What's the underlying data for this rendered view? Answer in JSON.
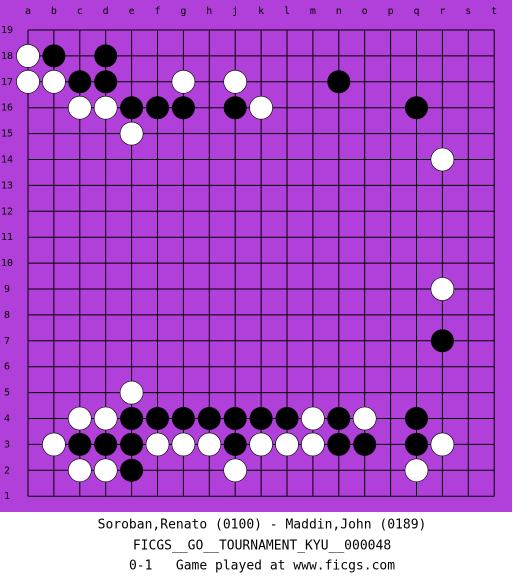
{
  "board": {
    "columns": [
      "a",
      "b",
      "c",
      "d",
      "e",
      "f",
      "g",
      "h",
      "j",
      "k",
      "l",
      "m",
      "n",
      "o",
      "p",
      "q",
      "r",
      "s",
      "t"
    ],
    "rows": [
      19,
      18,
      17,
      16,
      15,
      14,
      13,
      12,
      11,
      10,
      9,
      8,
      7,
      6,
      5,
      4,
      3,
      2,
      1
    ],
    "stones": [
      {
        "color": "white",
        "col": "a",
        "row": 18
      },
      {
        "color": "black",
        "col": "b",
        "row": 18
      },
      {
        "color": "black",
        "col": "d",
        "row": 18
      },
      {
        "color": "white",
        "col": "a",
        "row": 17
      },
      {
        "color": "white",
        "col": "b",
        "row": 17
      },
      {
        "color": "black",
        "col": "c",
        "row": 17
      },
      {
        "color": "black",
        "col": "d",
        "row": 17
      },
      {
        "color": "white",
        "col": "g",
        "row": 17
      },
      {
        "color": "white",
        "col": "j",
        "row": 17
      },
      {
        "color": "black",
        "col": "n",
        "row": 17
      },
      {
        "color": "white",
        "col": "c",
        "row": 16
      },
      {
        "color": "white",
        "col": "d",
        "row": 16
      },
      {
        "color": "black",
        "col": "e",
        "row": 16
      },
      {
        "color": "black",
        "col": "f",
        "row": 16
      },
      {
        "color": "black",
        "col": "g",
        "row": 16
      },
      {
        "color": "black",
        "col": "j",
        "row": 16
      },
      {
        "color": "white",
        "col": "k",
        "row": 16
      },
      {
        "color": "black",
        "col": "q",
        "row": 16
      },
      {
        "color": "white",
        "col": "e",
        "row": 15
      },
      {
        "color": "white",
        "col": "r",
        "row": 14
      },
      {
        "color": "white",
        "col": "r",
        "row": 9
      },
      {
        "color": "black",
        "col": "r",
        "row": 7
      },
      {
        "color": "white",
        "col": "e",
        "row": 5
      },
      {
        "color": "white",
        "col": "c",
        "row": 4
      },
      {
        "color": "white",
        "col": "d",
        "row": 4
      },
      {
        "color": "black",
        "col": "e",
        "row": 4
      },
      {
        "color": "black",
        "col": "f",
        "row": 4
      },
      {
        "color": "black",
        "col": "g",
        "row": 4
      },
      {
        "color": "black",
        "col": "h",
        "row": 4
      },
      {
        "color": "black",
        "col": "j",
        "row": 4
      },
      {
        "color": "black",
        "col": "k",
        "row": 4
      },
      {
        "color": "black",
        "col": "l",
        "row": 4
      },
      {
        "color": "white",
        "col": "m",
        "row": 4
      },
      {
        "color": "black",
        "col": "n",
        "row": 4
      },
      {
        "color": "white",
        "col": "o",
        "row": 4
      },
      {
        "color": "black",
        "col": "q",
        "row": 4
      },
      {
        "color": "white",
        "col": "b",
        "row": 3
      },
      {
        "color": "black",
        "col": "c",
        "row": 3
      },
      {
        "color": "black",
        "col": "d",
        "row": 3
      },
      {
        "color": "black",
        "col": "e",
        "row": 3
      },
      {
        "color": "white",
        "col": "f",
        "row": 3
      },
      {
        "color": "white",
        "col": "g",
        "row": 3
      },
      {
        "color": "white",
        "col": "h",
        "row": 3
      },
      {
        "color": "black",
        "col": "j",
        "row": 3
      },
      {
        "color": "white",
        "col": "k",
        "row": 3
      },
      {
        "color": "white",
        "col": "l",
        "row": 3
      },
      {
        "color": "white",
        "col": "m",
        "row": 3
      },
      {
        "color": "black",
        "col": "n",
        "row": 3
      },
      {
        "color": "black",
        "col": "o",
        "row": 3
      },
      {
        "color": "black",
        "col": "q",
        "row": 3
      },
      {
        "color": "white",
        "col": "r",
        "row": 3
      },
      {
        "color": "white",
        "col": "c",
        "row": 2
      },
      {
        "color": "white",
        "col": "d",
        "row": 2
      },
      {
        "color": "black",
        "col": "e",
        "row": 2
      },
      {
        "color": "white",
        "col": "j",
        "row": 2
      },
      {
        "color": "white",
        "col": "q",
        "row": 2
      }
    ]
  },
  "footer": {
    "players": "Soroban,Renato (0100) - Maddin,John (0189)",
    "tournament": "FICGS__GO__TOURNAMENT_KYU__000048",
    "result": "0-1   Game played at www.ficgs.com"
  }
}
